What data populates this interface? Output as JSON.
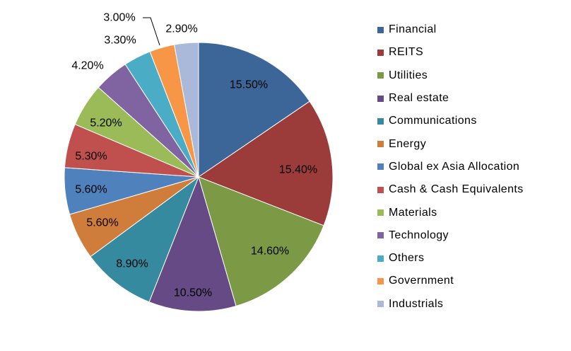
{
  "chart_data": {
    "type": "pie",
    "title": "",
    "legend_position": "right",
    "categories": [
      "Financial",
      "REITS",
      "Utilities",
      "Real estate",
      "Communications",
      "Energy",
      "Global ex Asia Allocation",
      "Cash & Cash Equivalents",
      "Materials",
      "Technology",
      "Others",
      "Government",
      "Industrials"
    ],
    "values": [
      15.5,
      15.4,
      14.6,
      10.5,
      8.9,
      5.6,
      5.6,
      5.3,
      5.2,
      4.2,
      3.3,
      3.0,
      2.9
    ],
    "labels": [
      "15.50%",
      "15.40%",
      "14.60%",
      "10.50%",
      "8.90%",
      "5.60%",
      "5.60%",
      "5.30%",
      "5.20%",
      "4.20%",
      "3.30%",
      "3.00%",
      "2.90%"
    ],
    "colors": [
      "#3C6598",
      "#9B3C3A",
      "#7C9A45",
      "#654A85",
      "#368A9F",
      "#D07C3A",
      "#4F81BD",
      "#C0504D",
      "#9BBB59",
      "#8064A2",
      "#4BACC6",
      "#F79646",
      "#AAB9D9"
    ]
  }
}
